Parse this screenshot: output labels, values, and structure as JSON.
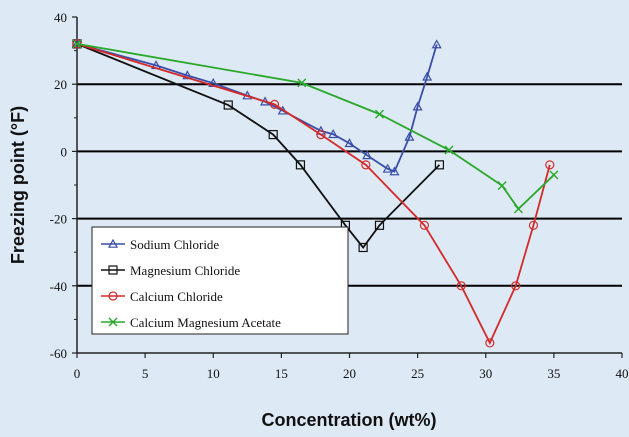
{
  "chart_data": {
    "type": "line",
    "xlabel": "Concentration (wt%)",
    "ylabel": "Freezing point (°F)",
    "xlim": [
      0,
      40
    ],
    "ylim": [
      -60,
      40
    ],
    "xticks": [
      0,
      5,
      10,
      15,
      20,
      25,
      30,
      35,
      40
    ],
    "yticks": [
      -60,
      -40,
      -20,
      0,
      20,
      40
    ],
    "x_tick_labels": [
      "0",
      "5",
      "10",
      "15",
      "20",
      "25",
      "30",
      "35",
      "40"
    ],
    "y_tick_labels": [
      "-60",
      "-40",
      "-20",
      "0",
      "20",
      "40"
    ],
    "gridlines_y": [
      -40,
      -20,
      0,
      20
    ],
    "legend_position": "bottom-left",
    "series": [
      {
        "name": "Sodium Chloride",
        "color": "#3a4ea8",
        "marker": "triangle",
        "points": [
          [
            0,
            32
          ],
          [
            5.8,
            25.6
          ],
          [
            8.1,
            22.6
          ],
          [
            10,
            20.3
          ],
          [
            12.5,
            16.6
          ],
          [
            13.8,
            14.8
          ],
          [
            15.1,
            12.1
          ],
          [
            17.9,
            6.1
          ],
          [
            18.8,
            5.1
          ],
          [
            20,
            2.4
          ],
          [
            21.3,
            -1.2
          ],
          [
            22.8,
            -5.2
          ],
          [
            23.3,
            -6
          ],
          [
            24.4,
            4.3
          ],
          [
            25,
            13.3
          ],
          [
            25.7,
            22.2
          ],
          [
            26.4,
            31.8
          ]
        ]
      },
      {
        "name": "Magnesium Chloride",
        "color": "#111111",
        "marker": "square",
        "points": [
          [
            0,
            32
          ],
          [
            11.1,
            13.8
          ],
          [
            14.4,
            5
          ],
          [
            16.4,
            -4
          ],
          [
            19.7,
            -22
          ],
          [
            21.0,
            -28.6
          ],
          [
            22.2,
            -22
          ],
          [
            26.6,
            -4
          ]
        ]
      },
      {
        "name": "Calcium Chloride",
        "color": "#d42a2a",
        "marker": "circle",
        "points": [
          [
            0,
            32
          ],
          [
            14.5,
            14
          ],
          [
            17.9,
            5
          ],
          [
            21.2,
            -4
          ],
          [
            25.5,
            -22
          ],
          [
            28.2,
            -40
          ],
          [
            30.3,
            -57
          ],
          [
            32.2,
            -40
          ],
          [
            33.5,
            -22
          ],
          [
            34.7,
            -4
          ]
        ]
      },
      {
        "name": "Calcium Magnesium Acetate",
        "color": "#2aa82a",
        "marker": "x",
        "points": [
          [
            0,
            32
          ],
          [
            16.5,
            20.4
          ],
          [
            22.2,
            11.1
          ],
          [
            27.3,
            0.4
          ],
          [
            31.2,
            -10.2
          ],
          [
            32.4,
            -17.1
          ],
          [
            35,
            -7
          ]
        ]
      }
    ]
  }
}
